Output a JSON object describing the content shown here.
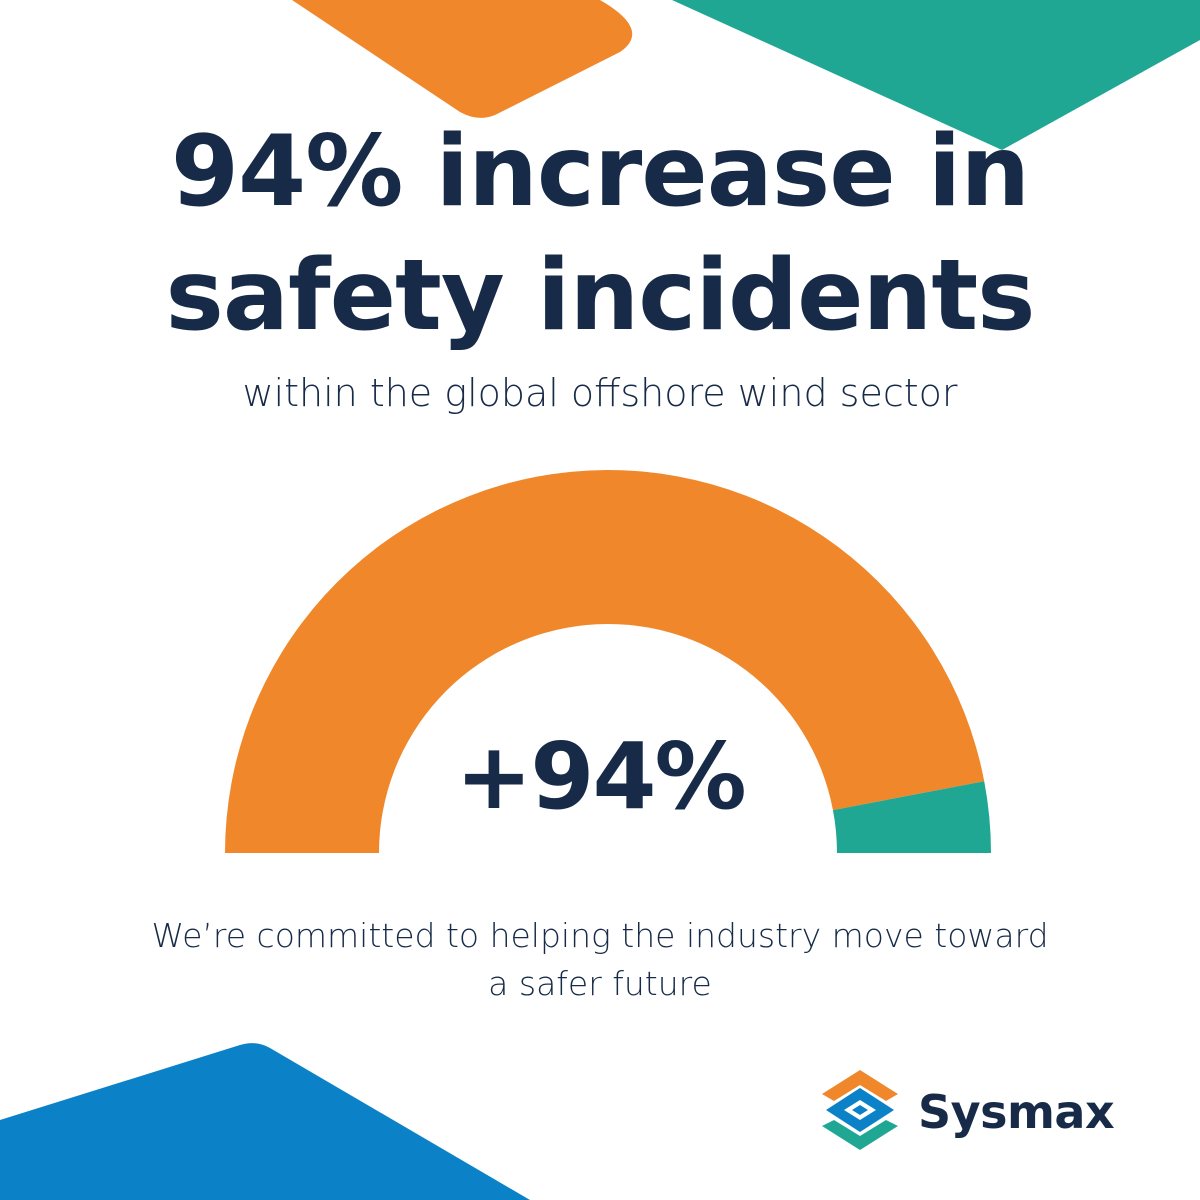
{
  "headline": {
    "line1": "94% increase in",
    "line2": "safety incidents"
  },
  "subtitle": "within the global offshore wind sector",
  "chart_data": {
    "type": "gauge",
    "value": 94,
    "max": 100,
    "value_label": "+94%",
    "colors": {
      "filled": "#f0882b",
      "remaining": "#20a794"
    }
  },
  "tagline": {
    "line1": "We’re committed to helping the industry move toward",
    "line2": "a safer future"
  },
  "brand": {
    "name": "Sysmax",
    "logo_icon": "layered-diamond-logo-icon"
  },
  "colors": {
    "navy": "#172b48",
    "orange": "#f0882b",
    "teal": "#20a794",
    "blue": "#0b82c8"
  }
}
